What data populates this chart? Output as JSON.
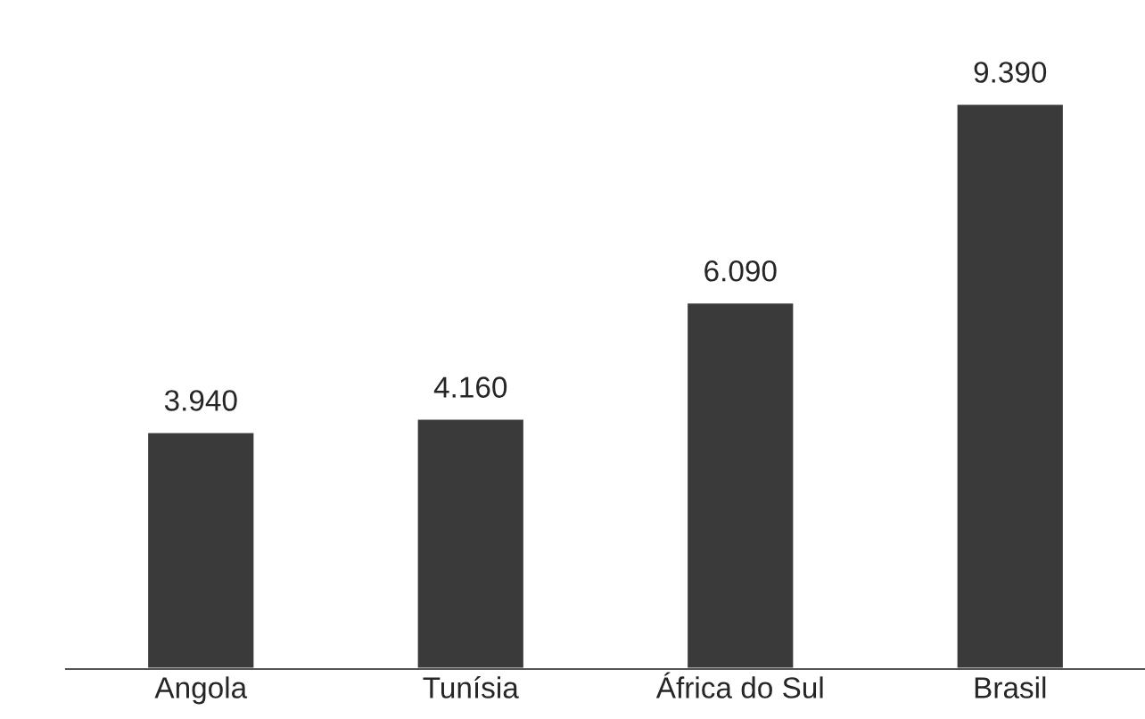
{
  "chart_data": {
    "type": "bar",
    "categories": [
      "Angola",
      "Tunísia",
      "África do Sul",
      "Brasil"
    ],
    "values": [
      3940,
      4160,
      6090,
      9390
    ],
    "value_labels": [
      "3.940",
      "4.160",
      "6.090",
      "9.390"
    ],
    "color": "#3a3a3a"
  }
}
